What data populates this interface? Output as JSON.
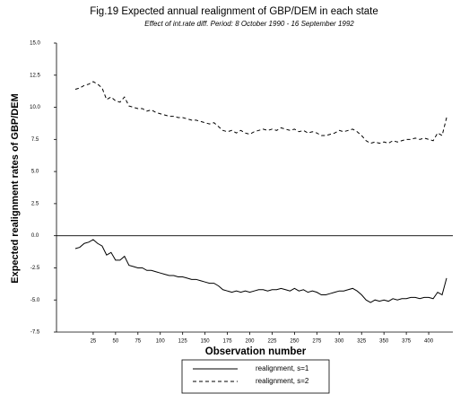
{
  "chart_data": {
    "type": "line",
    "title": "Fig.19 Expected annual realignment of GBP/DEM in each state",
    "subtitle": "Effect of int.rate diff. Period: 8 October 1990 - 16 September 1992",
    "x_label": "Observation number",
    "y_label": "Expected realignment rates of GBP/DEM",
    "x": [
      5,
      10,
      15,
      20,
      25,
      30,
      35,
      40,
      45,
      50,
      55,
      60,
      65,
      70,
      75,
      80,
      85,
      90,
      95,
      100,
      105,
      110,
      115,
      120,
      125,
      130,
      135,
      140,
      145,
      150,
      155,
      160,
      165,
      170,
      175,
      180,
      185,
      190,
      195,
      200,
      205,
      210,
      215,
      220,
      225,
      230,
      235,
      240,
      245,
      250,
      255,
      260,
      265,
      270,
      275,
      280,
      285,
      290,
      295,
      300,
      305,
      310,
      315,
      320,
      325,
      330,
      335,
      340,
      345,
      350,
      355,
      360,
      365,
      370,
      375,
      380,
      385,
      390,
      395,
      400,
      405,
      410,
      415,
      420
    ],
    "series": [
      {
        "name": "realignment, s=1",
        "color": "#000000",
        "dash": "none",
        "values": [
          -1.0,
          -0.9,
          -0.6,
          -0.5,
          -0.3,
          -0.6,
          -0.8,
          -1.5,
          -1.3,
          -1.9,
          -1.9,
          -1.6,
          -2.3,
          -2.4,
          -2.5,
          -2.5,
          -2.7,
          -2.7,
          -2.8,
          -2.9,
          -3.0,
          -3.1,
          -3.1,
          -3.2,
          -3.2,
          -3.3,
          -3.4,
          -3.4,
          -3.5,
          -3.6,
          -3.7,
          -3.7,
          -3.9,
          -4.2,
          -4.3,
          -4.4,
          -4.3,
          -4.4,
          -4.3,
          -4.4,
          -4.3,
          -4.2,
          -4.2,
          -4.3,
          -4.2,
          -4.2,
          -4.1,
          -4.2,
          -4.3,
          -4.1,
          -4.3,
          -4.2,
          -4.4,
          -4.3,
          -4.4,
          -4.6,
          -4.6,
          -4.5,
          -4.4,
          -4.3,
          -4.3,
          -4.2,
          -4.1,
          -4.3,
          -4.6,
          -5.0,
          -5.2,
          -5.0,
          -5.1,
          -5.0,
          -5.1,
          -4.9,
          -5.0,
          -4.9,
          -4.9,
          -4.8,
          -4.8,
          -4.9,
          -4.8,
          -4.8,
          -4.9,
          -4.4,
          -4.6,
          -3.3
        ]
      },
      {
        "name": "realignment, s=2",
        "color": "#000000",
        "dash": "4,3",
        "values": [
          11.4,
          11.5,
          11.7,
          11.8,
          12.0,
          11.8,
          11.5,
          10.6,
          10.8,
          10.5,
          10.4,
          10.8,
          10.1,
          10.0,
          9.9,
          9.9,
          9.7,
          9.8,
          9.6,
          9.5,
          9.4,
          9.3,
          9.3,
          9.2,
          9.2,
          9.1,
          9.0,
          9.0,
          8.9,
          8.8,
          8.7,
          8.8,
          8.5,
          8.2,
          8.1,
          8.2,
          8.0,
          8.2,
          8.0,
          7.9,
          8.1,
          8.2,
          8.3,
          8.2,
          8.3,
          8.2,
          8.4,
          8.3,
          8.2,
          8.3,
          8.1,
          8.2,
          8.0,
          8.1,
          8.0,
          7.8,
          7.8,
          7.9,
          8.0,
          8.2,
          8.1,
          8.2,
          8.3,
          8.1,
          7.8,
          7.4,
          7.2,
          7.3,
          7.2,
          7.3,
          7.2,
          7.4,
          7.3,
          7.4,
          7.5,
          7.5,
          7.6,
          7.5,
          7.6,
          7.5,
          7.4,
          8.0,
          7.8,
          9.2
        ]
      }
    ],
    "xlim": [
      -16,
      427
    ],
    "xticks": [
      25,
      50,
      75,
      100,
      125,
      150,
      175,
      200,
      225,
      250,
      275,
      300,
      325,
      350,
      375,
      400
    ],
    "ylim": [
      -7.5,
      15
    ],
    "yticks": [
      {
        "value": 15,
        "label": "15.0"
      },
      {
        "value": 12.5,
        "label": "12.5"
      },
      {
        "value": 10,
        "label": "10.0"
      },
      {
        "value": 7.5,
        "label": "7.5"
      },
      {
        "value": 5,
        "label": "5.0"
      },
      {
        "value": 2.5,
        "label": "2.5"
      },
      {
        "value": 0,
        "label": "0.0"
      },
      {
        "value": -2.5,
        "label": "-2.5"
      },
      {
        "value": -5,
        "label": "-5.0"
      },
      {
        "value": -7.5,
        "label": "-7.5"
      }
    ],
    "legend": "bottom"
  }
}
